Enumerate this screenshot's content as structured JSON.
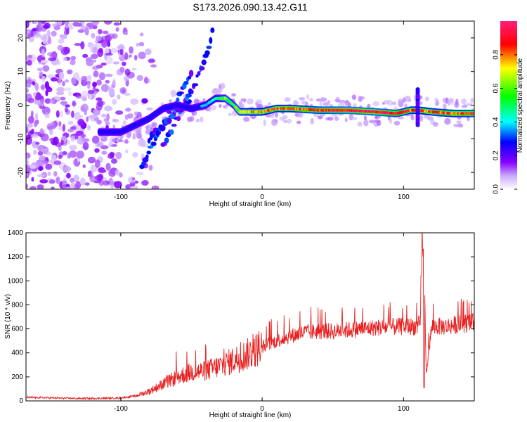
{
  "title": "S173.2026.090.13.42.G11",
  "chart_data": [
    {
      "type": "heatmap",
      "title": "S173.2026.090.13.42.G11",
      "xlabel": "Height of straight line (km)",
      "ylabel": "Frequency (Hz)",
      "xlim": [
        -167,
        150
      ],
      "ylim": [
        -25,
        25
      ],
      "xticks": [
        -100,
        0,
        100
      ],
      "yticks": [
        -20,
        -10,
        0,
        10,
        20
      ],
      "colorbar": {
        "label": "Normalized spectral amplitude",
        "range": [
          0,
          1
        ],
        "ticks": [
          "0.0",
          "0.2",
          "0.4",
          "0.6",
          "0.8"
        ],
        "colors": [
          "#ffffff",
          "#8a00ff",
          "#0000ff",
          "#00ffff",
          "#00ff00",
          "#ffff00",
          "#ff0000",
          "#ff1f7a"
        ]
      },
      "ridge": {
        "x": [
          -115,
          -100,
          -90,
          -80,
          -70,
          -60,
          -50,
          -40,
          -33,
          -26,
          -20,
          -16,
          -10,
          0,
          10,
          20,
          40,
          60,
          80,
          95,
          105,
          110,
          120,
          135,
          150
        ],
        "freq": [
          -8,
          -8,
          -6,
          -4,
          -1,
          0,
          -1,
          0,
          2,
          2,
          0,
          -2,
          -2,
          -2,
          -1,
          -1,
          -1.5,
          -1.5,
          -2,
          -2.5,
          -1.5,
          -1.5,
          -2,
          -2.5,
          -2.5
        ],
        "amp": [
          0.2,
          0.25,
          0.3,
          0.25,
          0.2,
          0.25,
          0.3,
          0.35,
          0.45,
          0.6,
          0.5,
          0.7,
          0.75,
          0.8,
          0.85,
          0.85,
          0.9,
          0.95,
          0.95,
          0.9,
          0.85,
          0.8,
          0.85,
          0.85,
          0.9
        ]
      },
      "branches": [
        {
          "x": [
            -85,
            -78,
            -70,
            -62,
            -55,
            -50
          ],
          "freq": [
            -18,
            -12,
            -6,
            0,
            6,
            10
          ]
        },
        {
          "x": [
            -70,
            -62,
            -55,
            -48,
            -40,
            -35
          ],
          "freq": [
            -12,
            -6,
            0,
            6,
            14,
            22
          ]
        },
        {
          "x": [
            -80,
            -70,
            -60,
            -50
          ],
          "freq": [
            -10,
            -6,
            -2,
            2
          ]
        }
      ],
      "spike": {
        "x": 110,
        "freq_range": [
          -6,
          5
        ]
      }
    },
    {
      "type": "line",
      "xlabel": "Height of straight line (km)",
      "ylabel": "SNR (10 * v/v)",
      "xlim": [
        -167,
        150
      ],
      "ylim": [
        0,
        1400
      ],
      "xticks": [
        -100,
        0,
        100
      ],
      "yticks": [
        0,
        200,
        400,
        600,
        800,
        1000,
        1200,
        1400
      ],
      "color": "#e82020",
      "series": [
        {
          "name": "SNR",
          "x": [
            -167,
            -150,
            -130,
            -110,
            -100,
            -90,
            -80,
            -70,
            -60,
            -50,
            -40,
            -30,
            -20,
            -10,
            0,
            10,
            20,
            30,
            40,
            50,
            60,
            70,
            80,
            90,
            100,
            105,
            110,
            112,
            114,
            116,
            120,
            130,
            140,
            150
          ],
          "y": [
            30,
            25,
            20,
            22,
            25,
            40,
            80,
            140,
            200,
            240,
            250,
            290,
            340,
            390,
            450,
            500,
            540,
            570,
            580,
            580,
            590,
            600,
            610,
            615,
            620,
            620,
            620,
            650,
            1400,
            230,
            620,
            620,
            640,
            650
          ]
        }
      ],
      "annotations": [
        {
          "x": -40,
          "y": 470
        },
        {
          "x": 114,
          "y": 1400
        },
        {
          "x": 114,
          "y": 110
        },
        {
          "x": 113,
          "y": 1040
        }
      ]
    }
  ]
}
